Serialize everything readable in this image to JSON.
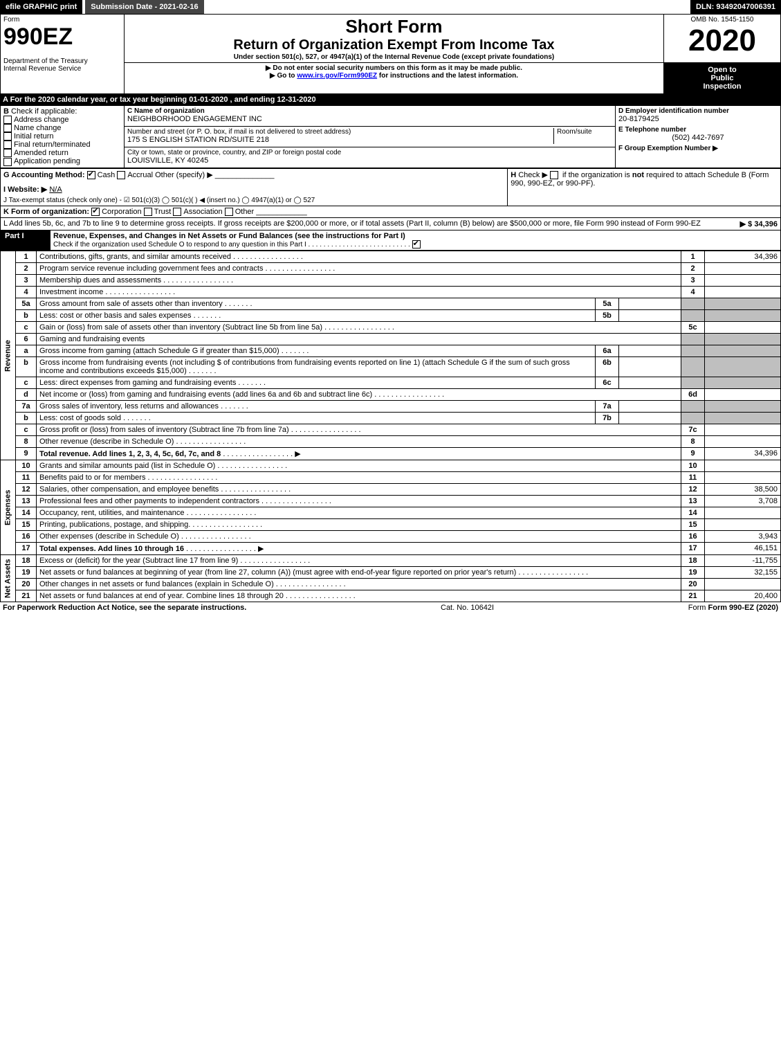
{
  "topbar": {
    "efile": "efile GRAPHIC print",
    "subLabel": "Submission Date - 2021-02-16",
    "dln": "DLN: 93492047006391"
  },
  "form": {
    "formWord": "Form",
    "formNum": "990EZ",
    "shortForm": "Short Form",
    "title": "Return of Organization Exempt From Income Tax",
    "subline": "Under section 501(c), 527, or 4947(a)(1) of the Internal Revenue Code (except private foundations)",
    "warn1": "▶ Do not enter social security numbers on this form as it may be made public.",
    "warn2": "▶ Go to ",
    "warnLink": "www.irs.gov/Form990EZ",
    "warn2b": " for instructions and the latest information.",
    "omb": "OMB No. 1545-1150",
    "year": "2020",
    "open1": "Open to",
    "open2": "Public",
    "open3": "Inspection",
    "dept": "Department of the Treasury",
    "irs": "Internal Revenue Service"
  },
  "periodLine": "A  For the 2020 calendar year, or tax year beginning 01-01-2020 , and ending 12-31-2020",
  "boxB": {
    "label": "B",
    "check": "Check if applicable:",
    "items": [
      "Address change",
      "Name change",
      "Initial return",
      "Final return/terminated",
      "Amended return",
      "Application pending"
    ]
  },
  "boxC": {
    "nameLbl": "C Name of organization",
    "name": "NEIGHBORHOOD ENGAGEMENT INC",
    "addrLbl": "Number and street (or P. O. box, if mail is not delivered to street address)",
    "room": "Room/suite",
    "addr": "175 S ENGLISH STATION RD/SUITE 218",
    "cityLbl": "City or town, state or province, country, and ZIP or foreign postal code",
    "city": "LOUISVILLE, KY  40245"
  },
  "boxD": {
    "lblD": "D Employer identification number",
    "ein": "20-8179425",
    "lblE": "E Telephone number",
    "phone": "(502) 442-7697",
    "lblF": "F Group Exemption Number  ▶"
  },
  "gLine": {
    "lbl": "G Accounting Method:",
    "cash": "Cash",
    "accrual": "Accrual",
    "other": "Other (specify) ▶"
  },
  "hLine": {
    "lbl": "H",
    "text": "Check ▶ ",
    "text2": " if the organization is ",
    "not": "not",
    "text3": " required to attach Schedule B (Form 990, 990-EZ, or 990-PF)."
  },
  "iLine": {
    "lbl": "I Website: ▶",
    "val": "N/A"
  },
  "jLine": "J Tax-exempt status (check only one) -  ☑ 501(c)(3) ◯ 501(c)( ) ◀ (insert no.) ◯ 4947(a)(1) or ◯ 527",
  "kLine": {
    "lbl": "K Form of organization:",
    "corp": "Corporation",
    "trust": "Trust",
    "assoc": "Association",
    "other": "Other"
  },
  "lLine": {
    "text": "L Add lines 5b, 6c, and 7b to line 9 to determine gross receipts. If gross receipts are $200,000 or more, or if total assets (Part II, column (B) below) are $500,000 or more, file Form 990 instead of Form 990-EZ",
    "amt": "▶ $ 34,396"
  },
  "part1": {
    "hdr": "Part I",
    "title": "Revenue, Expenses, and Changes in Net Assets or Fund Balances (see the instructions for Part I)",
    "checkO": "Check if the organization used Schedule O to respond to any question in this Part I",
    "sections": {
      "rev": "Revenue",
      "exp": "Expenses",
      "na": "Net Assets"
    },
    "rows": [
      {
        "n": "1",
        "t": "Contributions, gifts, grants, and similar amounts received",
        "c": "1",
        "v": "34,396"
      },
      {
        "n": "2",
        "t": "Program service revenue including government fees and contracts",
        "c": "2",
        "v": ""
      },
      {
        "n": "3",
        "t": "Membership dues and assessments",
        "c": "3",
        "v": ""
      },
      {
        "n": "4",
        "t": "Investment income",
        "c": "4",
        "v": ""
      },
      {
        "n": "5a",
        "t": "Gross amount from sale of assets other than inventory",
        "sub": "5a",
        "subv": ""
      },
      {
        "n": "b",
        "t": "Less: cost or other basis and sales expenses",
        "sub": "5b",
        "subv": ""
      },
      {
        "n": "c",
        "t": "Gain or (loss) from sale of assets other than inventory (Subtract line 5b from line 5a)",
        "c": "5c",
        "v": ""
      },
      {
        "n": "6",
        "t": "Gaming and fundraising events"
      },
      {
        "n": "a",
        "t": "Gross income from gaming (attach Schedule G if greater than $15,000)",
        "sub": "6a",
        "subv": ""
      },
      {
        "n": "b",
        "t": "Gross income from fundraising events (not including $                          of contributions from fundraising events reported on line 1) (attach Schedule G if the sum of such gross income and contributions exceeds $15,000)",
        "sub": "6b",
        "subv": ""
      },
      {
        "n": "c",
        "t": "Less: direct expenses from gaming and fundraising events",
        "sub": "6c",
        "subv": ""
      },
      {
        "n": "d",
        "t": "Net income or (loss) from gaming and fundraising events (add lines 6a and 6b and subtract line 6c)",
        "c": "6d",
        "v": ""
      },
      {
        "n": "7a",
        "t": "Gross sales of inventory, less returns and allowances",
        "sub": "7a",
        "subv": ""
      },
      {
        "n": "b",
        "t": "Less: cost of goods sold",
        "sub": "7b",
        "subv": ""
      },
      {
        "n": "c",
        "t": "Gross profit or (loss) from sales of inventory (Subtract line 7b from line 7a)",
        "c": "7c",
        "v": ""
      },
      {
        "n": "8",
        "t": "Other revenue (describe in Schedule O)",
        "c": "8",
        "v": ""
      },
      {
        "n": "9",
        "t": "Total revenue. Add lines 1, 2, 3, 4, 5c, 6d, 7c, and 8",
        "c": "9",
        "v": "34,396",
        "bold": true,
        "arrow": true
      }
    ],
    "expRows": [
      {
        "n": "10",
        "t": "Grants and similar amounts paid (list in Schedule O)",
        "c": "10",
        "v": ""
      },
      {
        "n": "11",
        "t": "Benefits paid to or for members",
        "c": "11",
        "v": ""
      },
      {
        "n": "12",
        "t": "Salaries, other compensation, and employee benefits",
        "c": "12",
        "v": "38,500"
      },
      {
        "n": "13",
        "t": "Professional fees and other payments to independent contractors",
        "c": "13",
        "v": "3,708"
      },
      {
        "n": "14",
        "t": "Occupancy, rent, utilities, and maintenance",
        "c": "14",
        "v": ""
      },
      {
        "n": "15",
        "t": "Printing, publications, postage, and shipping.",
        "c": "15",
        "v": ""
      },
      {
        "n": "16",
        "t": "Other expenses (describe in Schedule O)",
        "c": "16",
        "v": "3,943"
      },
      {
        "n": "17",
        "t": "Total expenses. Add lines 10 through 16",
        "c": "17",
        "v": "46,151",
        "bold": true,
        "arrow": true
      }
    ],
    "naRows": [
      {
        "n": "18",
        "t": "Excess or (deficit) for the year (Subtract line 17 from line 9)",
        "c": "18",
        "v": "-11,755"
      },
      {
        "n": "19",
        "t": "Net assets or fund balances at beginning of year (from line 27, column (A)) (must agree with end-of-year figure reported on prior year's return)",
        "c": "19",
        "v": "32,155"
      },
      {
        "n": "20",
        "t": "Other changes in net assets or fund balances (explain in Schedule O)",
        "c": "20",
        "v": ""
      },
      {
        "n": "21",
        "t": "Net assets or fund balances at end of year. Combine lines 18 through 20",
        "c": "21",
        "v": "20,400"
      }
    ]
  },
  "footer": {
    "pra": "For Paperwork Reduction Act Notice, see the separate instructions.",
    "cat": "Cat. No. 10642I",
    "form": "Form 990-EZ (2020)"
  }
}
